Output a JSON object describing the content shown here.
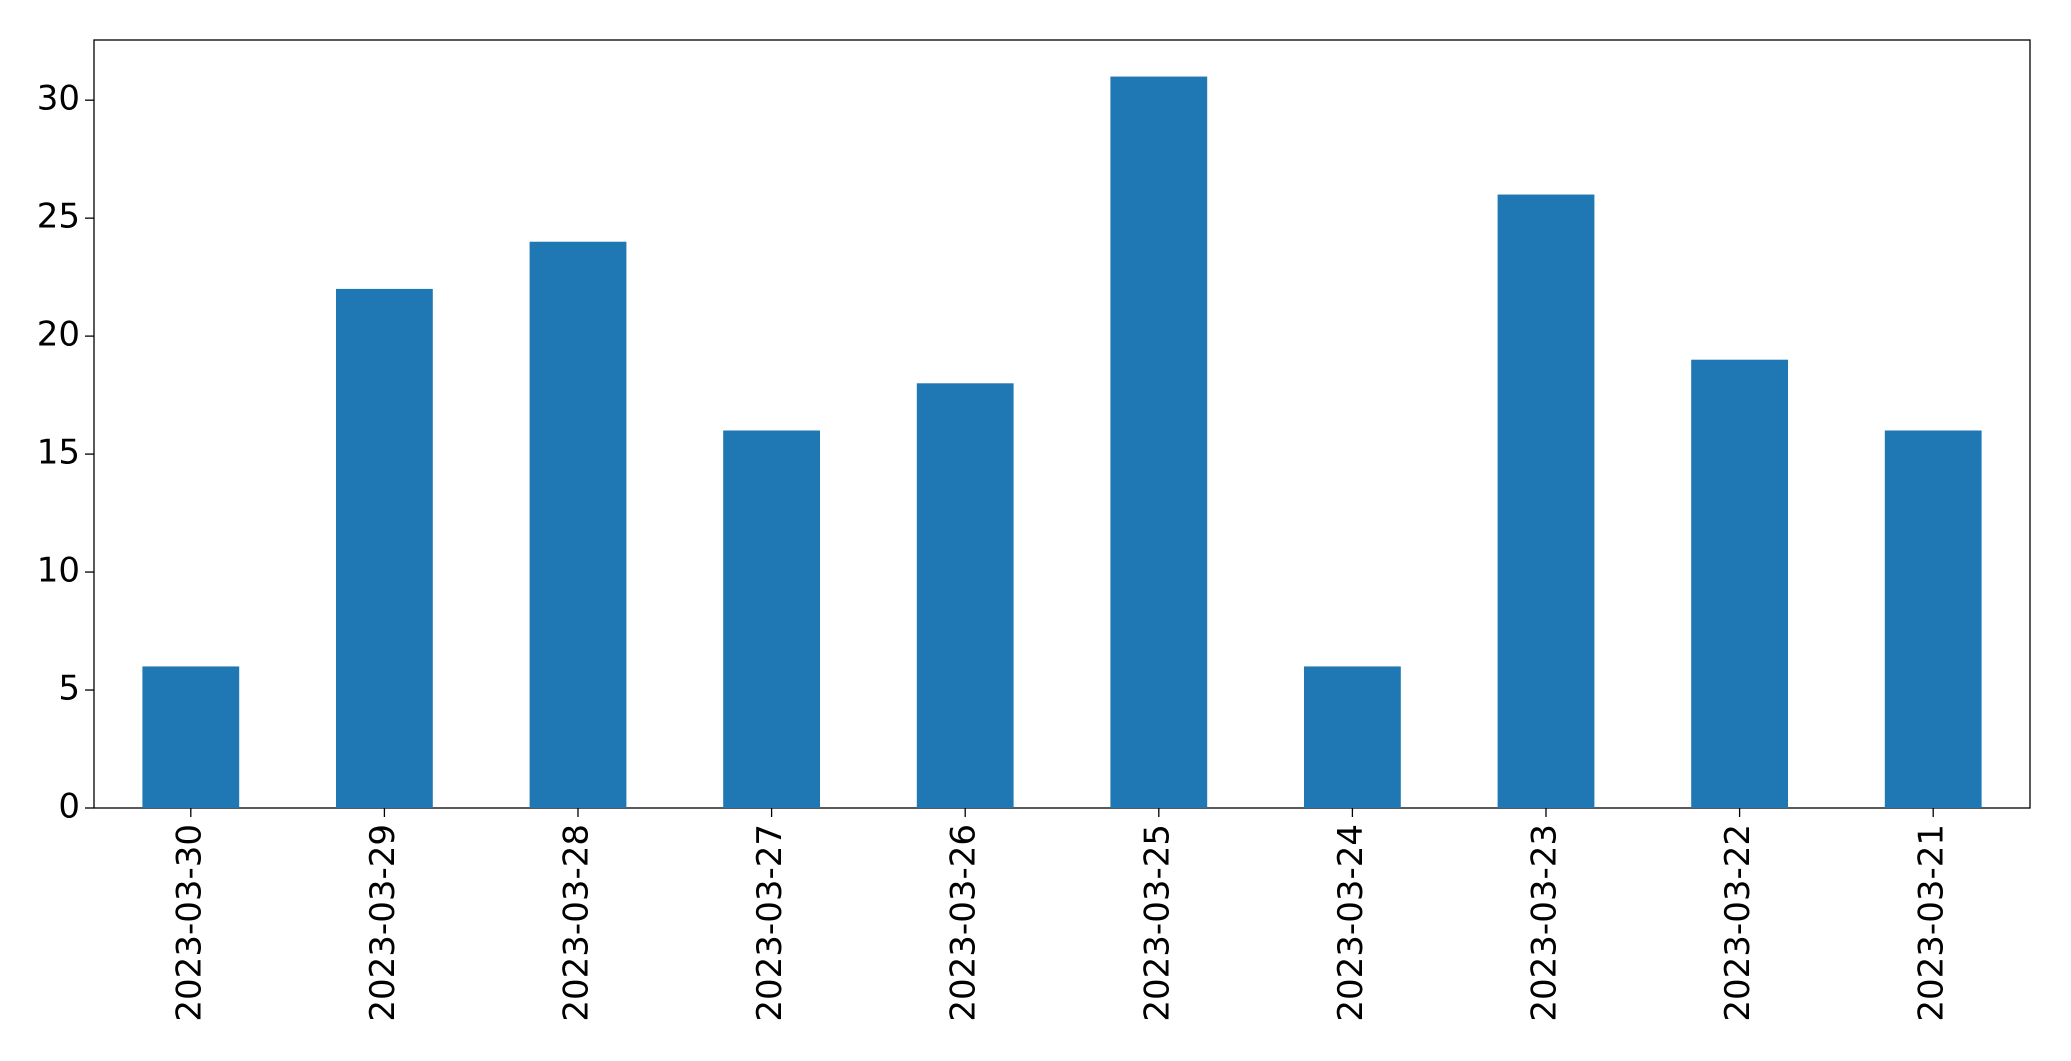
{
  "chart_data": {
    "type": "bar",
    "categories": [
      "2023-03-30",
      "2023-03-29",
      "2023-03-28",
      "2023-03-27",
      "2023-03-26",
      "2023-03-25",
      "2023-03-24",
      "2023-03-23",
      "2023-03-22",
      "2023-03-21"
    ],
    "values": [
      6,
      22,
      24,
      16,
      18,
      31,
      6,
      26,
      19,
      16
    ],
    "color": "#1f77b4",
    "ylim": [
      0,
      32.55
    ],
    "yticks": [
      0,
      5,
      10,
      15,
      20,
      25,
      30
    ],
    "grid": false
  }
}
